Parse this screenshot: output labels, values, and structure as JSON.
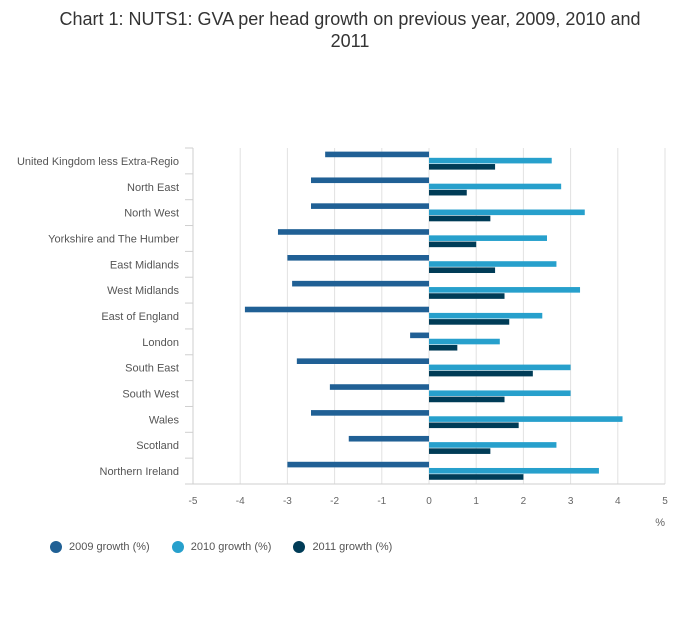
{
  "chart_data": {
    "type": "bar",
    "orientation": "horizontal",
    "title": "Chart 1: NUTS1: GVA per head growth on previous year, 2009, 2010 and 2011",
    "xlabel": "%",
    "xlim": [
      -5,
      5
    ],
    "xticks": [
      -5,
      -4,
      -3,
      -2,
      -1,
      0,
      1,
      2,
      3,
      4,
      5
    ],
    "grid": true,
    "legend_position": "bottom-left",
    "categories": [
      "United Kingdom less Extra-Regio",
      "North East",
      "North West",
      "Yorkshire and The Humber",
      "East Midlands",
      "West Midlands",
      "East of England",
      "London",
      "South East",
      "South West",
      "Wales",
      "Scotland",
      "Northern Ireland"
    ],
    "series": [
      {
        "name": "2009 growth (%)",
        "color": "#206095",
        "values": [
          -2.2,
          -2.5,
          -2.5,
          -3.2,
          -3.0,
          -2.9,
          -3.9,
          -0.4,
          -2.8,
          -2.1,
          -2.5,
          -1.7,
          -3.0
        ]
      },
      {
        "name": "2010 growth (%)",
        "color": "#27a0cc",
        "values": [
          2.6,
          2.8,
          3.3,
          2.5,
          2.7,
          3.2,
          2.4,
          1.5,
          3.0,
          3.0,
          4.1,
          2.7,
          3.6
        ]
      },
      {
        "name": "2011 growth (%)",
        "color": "#003c57",
        "values": [
          1.4,
          0.8,
          1.3,
          1.0,
          1.4,
          1.6,
          1.7,
          0.6,
          2.2,
          1.6,
          1.9,
          1.3,
          2.0
        ]
      }
    ]
  }
}
